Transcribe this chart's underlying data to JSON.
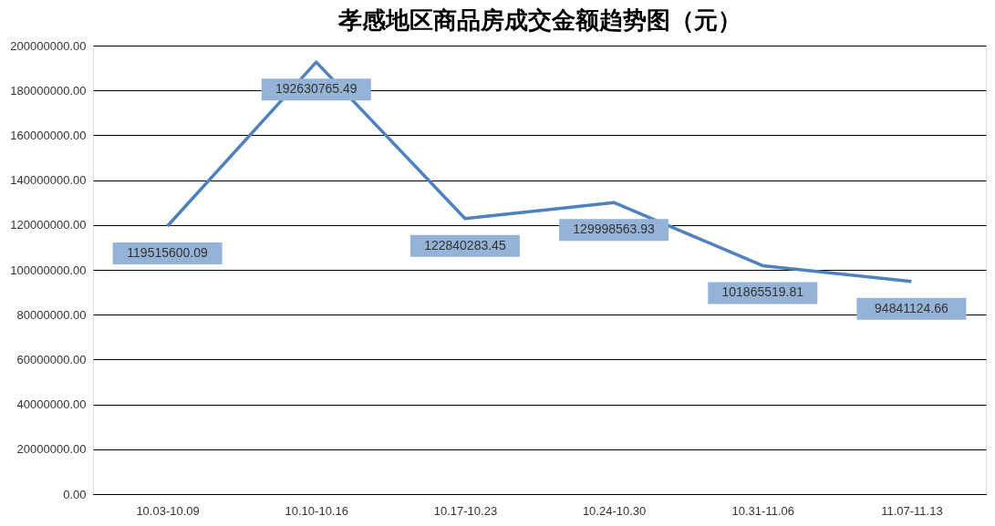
{
  "chart_data": {
    "type": "line",
    "title": "孝感地区商品房成交金额趋势图（元）",
    "categories": [
      "10.03-10.09",
      "10.10-10.16",
      "10.17-10.23",
      "10.24-10.30",
      "10.31-11.06",
      "11.07-11.13"
    ],
    "series": [
      {
        "color": "#4f81bd",
        "values": [
          119515600.09,
          192630765.49,
          122840283.45,
          129998563.93,
          101865519.81,
          94841124.66
        ]
      }
    ],
    "ylim": [
      0,
      200000000
    ],
    "yticks": [
      {
        "value": 0,
        "label": "0.00"
      },
      {
        "value": 20000000,
        "label": "20000000.00"
      },
      {
        "value": 40000000,
        "label": "40000000.00"
      },
      {
        "value": 60000000,
        "label": "60000000.00"
      },
      {
        "value": 80000000,
        "label": "80000000.00"
      },
      {
        "value": 100000000,
        "label": "100000000.00"
      },
      {
        "value": 120000000,
        "label": "120000000.00"
      },
      {
        "value": 140000000,
        "label": "140000000.00"
      },
      {
        "value": 160000000,
        "label": "160000000.00"
      },
      {
        "value": 180000000,
        "label": "180000000.00"
      },
      {
        "value": 200000000,
        "label": "200000000.00"
      }
    ],
    "grid": "y",
    "data_labels": true,
    "legend": false,
    "marker": "none",
    "line_style": "solid"
  }
}
